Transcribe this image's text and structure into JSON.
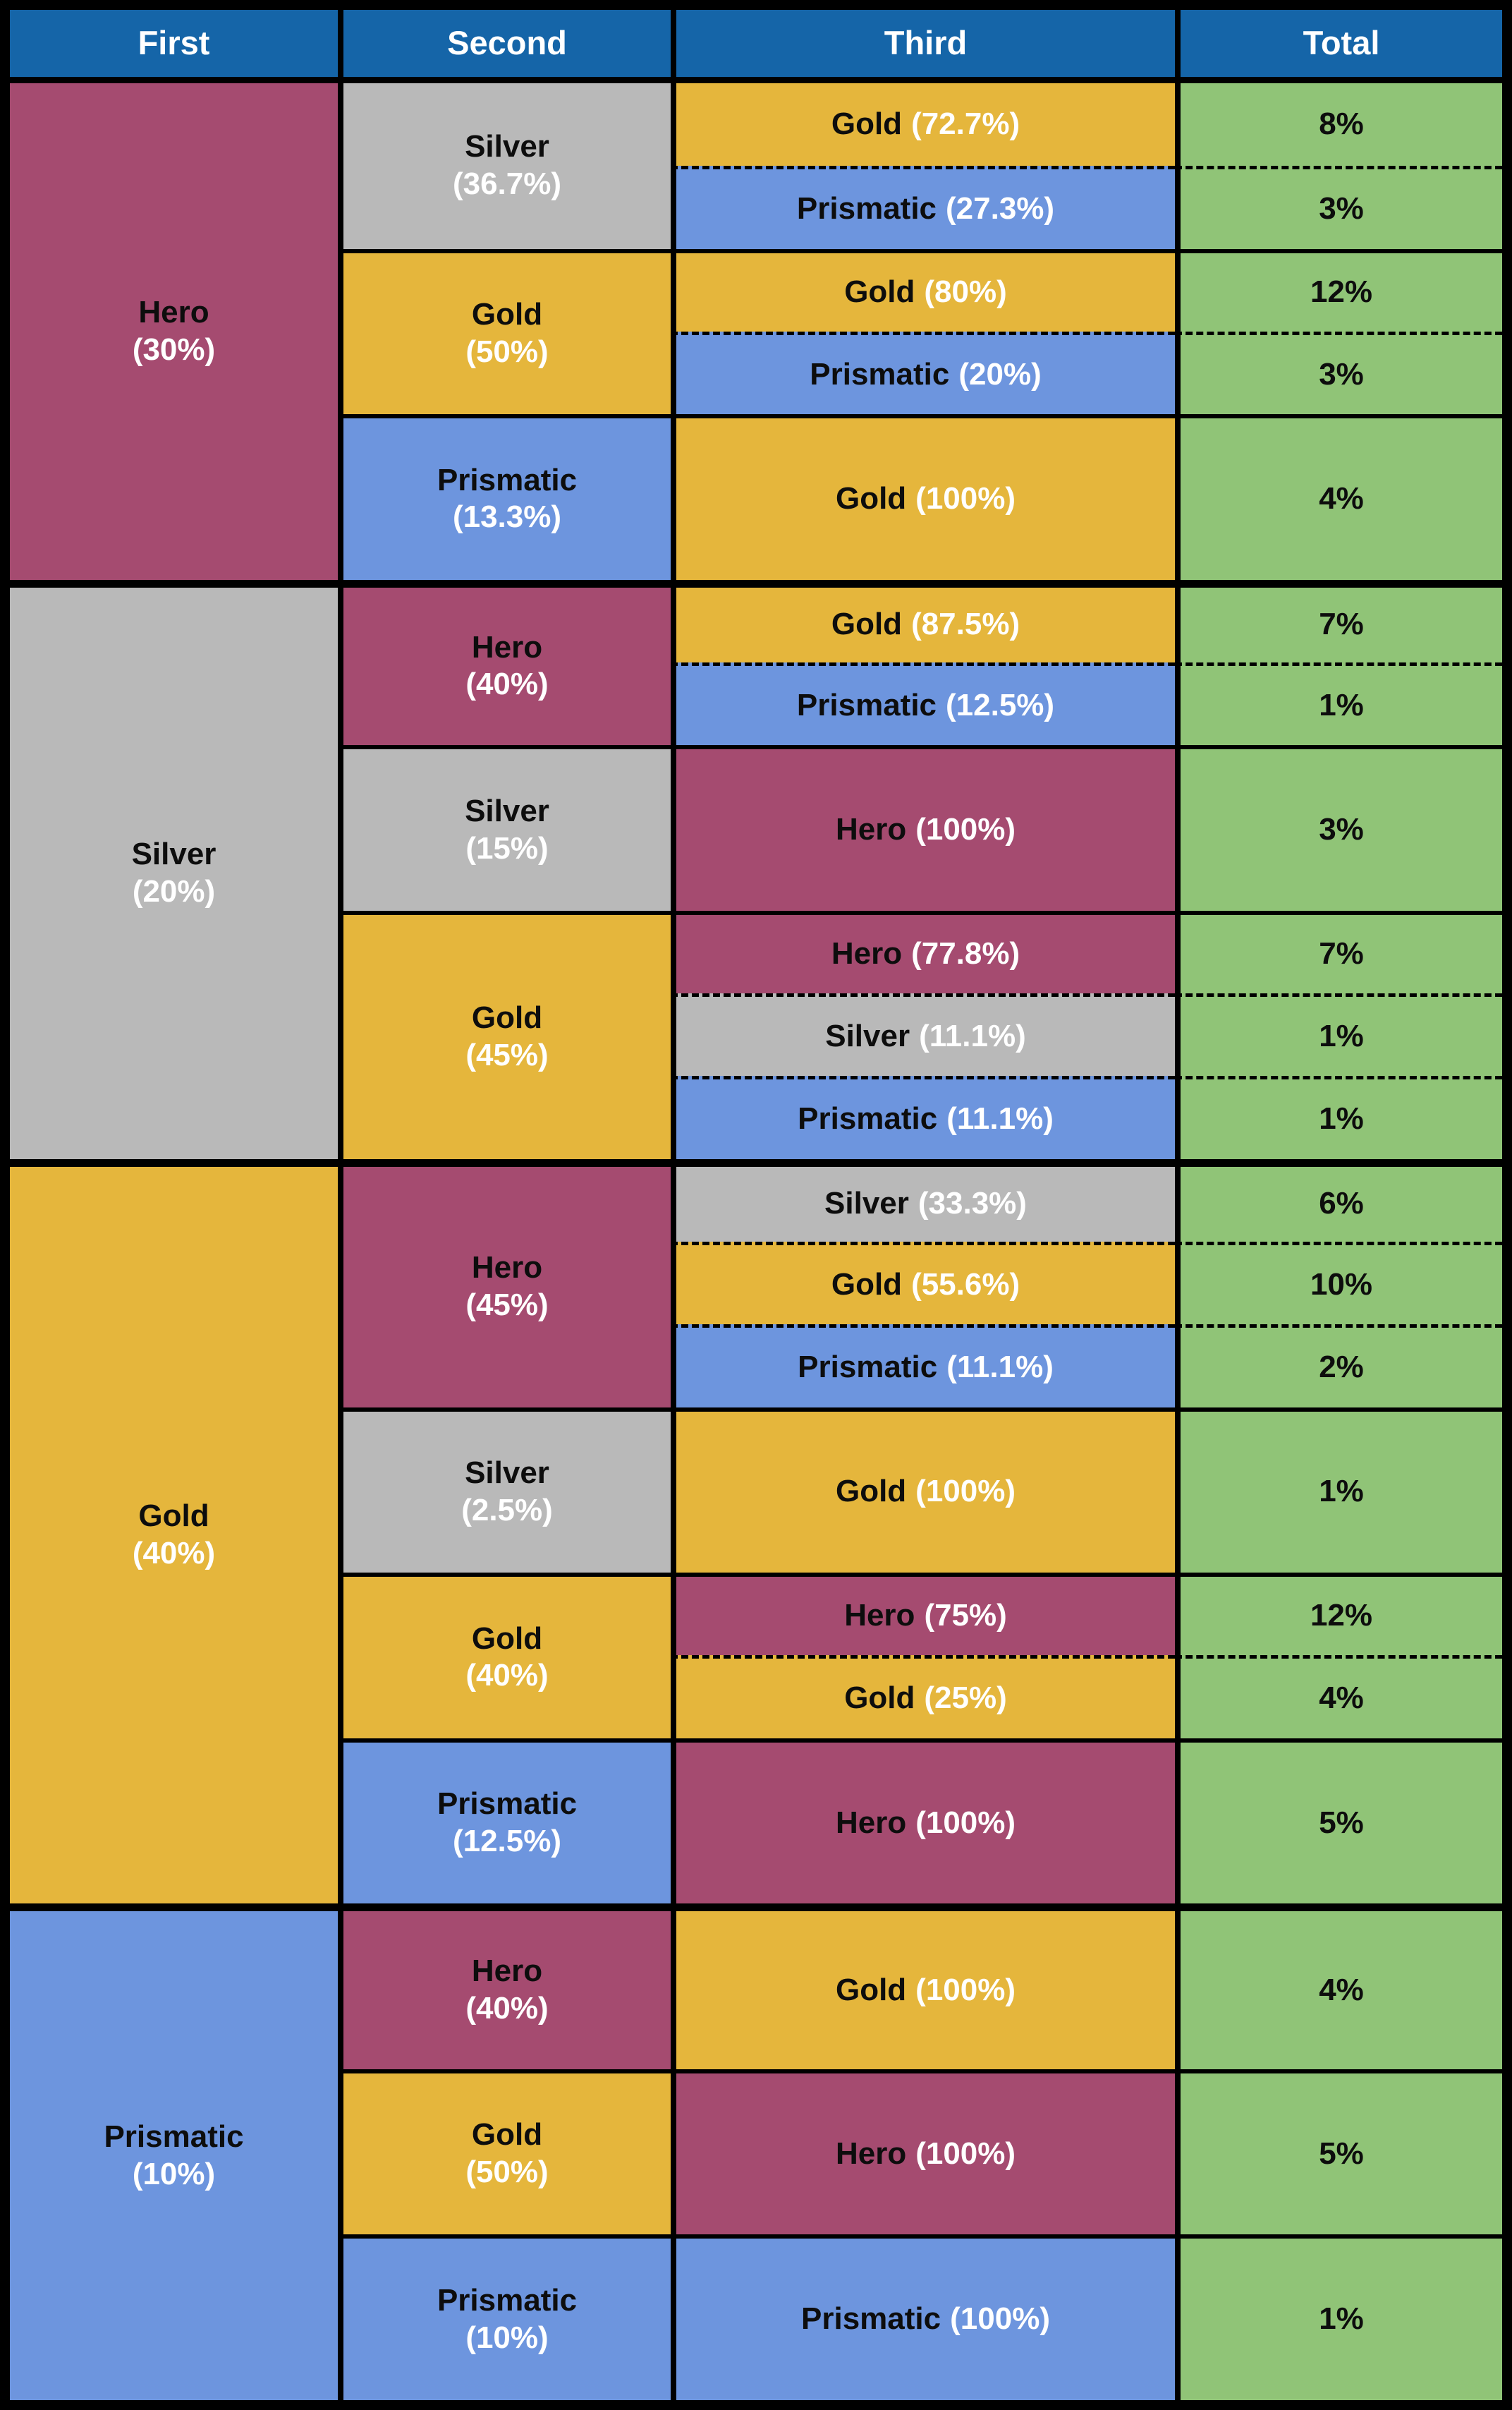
{
  "chart_data": {
    "type": "table",
    "columns": [
      "First",
      "Second",
      "Third",
      "Total"
    ],
    "first_col": [
      {
        "name": "Hero",
        "pct": "(30%)",
        "value": 30
      },
      {
        "name": "Silver",
        "pct": "(20%)",
        "value": 20
      },
      {
        "name": "Gold",
        "pct": "(40%)",
        "value": 40
      },
      {
        "name": "Prismatic",
        "pct": "(10%)",
        "value": 10
      }
    ],
    "second_col": [
      {
        "parent": "Hero",
        "name": "Silver",
        "pct": "(36.7%)",
        "value": 36.7
      },
      {
        "parent": "Hero",
        "name": "Gold",
        "pct": "(50%)",
        "value": 50
      },
      {
        "parent": "Hero",
        "name": "Prismatic",
        "pct": "(13.3%)",
        "value": 13.3
      },
      {
        "parent": "Silver",
        "name": "Hero",
        "pct": "(40%)",
        "value": 40
      },
      {
        "parent": "Silver",
        "name": "Silver",
        "pct": "(15%)",
        "value": 15
      },
      {
        "parent": "Silver",
        "name": "Gold",
        "pct": "(45%)",
        "value": 45
      },
      {
        "parent": "Gold",
        "name": "Hero",
        "pct": "(45%)",
        "value": 45
      },
      {
        "parent": "Gold",
        "name": "Silver",
        "pct": "(2.5%)",
        "value": 2.5
      },
      {
        "parent": "Gold",
        "name": "Gold",
        "pct": "(40%)",
        "value": 40
      },
      {
        "parent": "Gold",
        "name": "Prismatic",
        "pct": "(12.5%)",
        "value": 12.5
      },
      {
        "parent": "Prismatic",
        "name": "Hero",
        "pct": "(40%)",
        "value": 40
      },
      {
        "parent": "Prismatic",
        "name": "Gold",
        "pct": "(50%)",
        "value": 50
      },
      {
        "parent": "Prismatic",
        "name": "Prismatic",
        "pct": "(10%)",
        "value": 10
      }
    ],
    "leaves": [
      {
        "path": "Hero > Silver",
        "name": "Gold",
        "pct": "(72.7%)",
        "value": 72.7,
        "total": "8%",
        "total_value": 8
      },
      {
        "path": "Hero > Silver",
        "name": "Prismatic",
        "pct": "(27.3%)",
        "value": 27.3,
        "total": "3%",
        "total_value": 3
      },
      {
        "path": "Hero > Gold",
        "name": "Gold",
        "pct": "(80%)",
        "value": 80,
        "total": "12%",
        "total_value": 12
      },
      {
        "path": "Hero > Gold",
        "name": "Prismatic",
        "pct": "(20%)",
        "value": 20,
        "total": "3%",
        "total_value": 3
      },
      {
        "path": "Hero > Prismatic",
        "name": "Gold",
        "pct": "(100%)",
        "value": 100,
        "total": "4%",
        "total_value": 4
      },
      {
        "path": "Silver > Hero",
        "name": "Gold",
        "pct": "(87.5%)",
        "value": 87.5,
        "total": "7%",
        "total_value": 7
      },
      {
        "path": "Silver > Hero",
        "name": "Prismatic",
        "pct": "(12.5%)",
        "value": 12.5,
        "total": "1%",
        "total_value": 1
      },
      {
        "path": "Silver > Silver",
        "name": "Hero",
        "pct": "(100%)",
        "value": 100,
        "total": "3%",
        "total_value": 3
      },
      {
        "path": "Silver > Gold",
        "name": "Hero",
        "pct": "(77.8%)",
        "value": 77.8,
        "total": "7%",
        "total_value": 7
      },
      {
        "path": "Silver > Gold",
        "name": "Silver",
        "pct": "(11.1%)",
        "value": 11.1,
        "total": "1%",
        "total_value": 1
      },
      {
        "path": "Silver > Gold",
        "name": "Prismatic",
        "pct": "(11.1%)",
        "value": 11.1,
        "total": "1%",
        "total_value": 1
      },
      {
        "path": "Gold > Hero",
        "name": "Silver",
        "pct": "(33.3%)",
        "value": 33.3,
        "total": "6%",
        "total_value": 6
      },
      {
        "path": "Gold > Hero",
        "name": "Gold",
        "pct": "(55.6%)",
        "value": 55.6,
        "total": "10%",
        "total_value": 10
      },
      {
        "path": "Gold > Hero",
        "name": "Prismatic",
        "pct": "(11.1%)",
        "value": 11.1,
        "total": "2%",
        "total_value": 2
      },
      {
        "path": "Gold > Silver",
        "name": "Gold",
        "pct": "(100%)",
        "value": 100,
        "total": "1%",
        "total_value": 1
      },
      {
        "path": "Gold > Gold",
        "name": "Hero",
        "pct": "(75%)",
        "value": 75,
        "total": "12%",
        "total_value": 12
      },
      {
        "path": "Gold > Gold",
        "name": "Gold",
        "pct": "(25%)",
        "value": 25,
        "total": "4%",
        "total_value": 4
      },
      {
        "path": "Gold > Prismatic",
        "name": "Hero",
        "pct": "(100%)",
        "value": 100,
        "total": "5%",
        "total_value": 5
      },
      {
        "path": "Prismatic > Hero",
        "name": "Gold",
        "pct": "(100%)",
        "value": 100,
        "total": "4%",
        "total_value": 4
      },
      {
        "path": "Prismatic > Gold",
        "name": "Hero",
        "pct": "(100%)",
        "value": 100,
        "total": "5%",
        "total_value": 5
      },
      {
        "path": "Prismatic > Prismatic",
        "name": "Prismatic",
        "pct": "(100%)",
        "value": 100,
        "total": "1%",
        "total_value": 1
      }
    ]
  },
  "colors": {
    "header": "#1565a8",
    "hero": "#a54b70",
    "silver": "#b9b9b9",
    "gold": "#e5b63c",
    "prismatic": "#6d95de",
    "total": "#90c477",
    "name_text": "#0d0d0d",
    "pct_text": "#ffffff",
    "border": "#000000"
  }
}
